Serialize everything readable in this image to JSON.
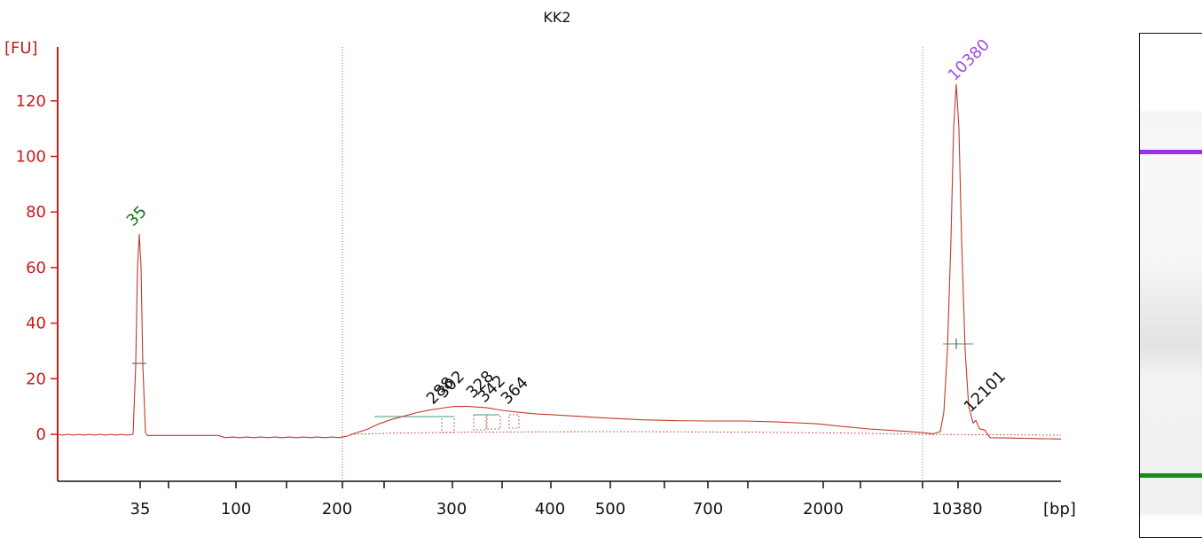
{
  "chart_data": {
    "type": "line",
    "title": "KK2",
    "ylabel": "[FU]",
    "xlabel": "[bp]",
    "ylim": [
      -17,
      137
    ],
    "y_ticks": [
      0,
      20,
      40,
      60,
      80,
      100,
      120
    ],
    "y_tick_labels": [
      "0",
      "20",
      "40",
      "60",
      "80",
      "100",
      "120"
    ],
    "x_tick_labels": [
      "35",
      "100",
      "200",
      "300",
      "400",
      "500",
      "700",
      "2000",
      "10380"
    ],
    "peak_labels": [
      {
        "text": "35",
        "size_bp": 35,
        "fu": 72,
        "color": "#117711"
      },
      {
        "text": "288",
        "size_bp": 288,
        "fu": 10,
        "color": "#111111"
      },
      {
        "text": "302",
        "size_bp": 302,
        "fu": 10,
        "color": "#111111"
      },
      {
        "text": "328",
        "size_bp": 328,
        "fu": 10,
        "color": "#111111"
      },
      {
        "text": "342",
        "size_bp": 342,
        "fu": 9,
        "color": "#111111"
      },
      {
        "text": "364",
        "size_bp": 364,
        "fu": 8,
        "color": "#111111"
      },
      {
        "text": "10380",
        "size_bp": 10380,
        "fu": 126,
        "color": "#a24be6"
      },
      {
        "text": "12101",
        "size_bp": 12101,
        "fu": 5,
        "color": "#111111"
      }
    ],
    "series": [
      {
        "color": "#c0392b",
        "points": [
          [
            "below 35",
            -0.3
          ],
          [
            "35",
            72
          ],
          [
            "100",
            -0.7
          ],
          [
            "200",
            -1.3
          ],
          [
            "250",
            4.3
          ],
          [
            "288",
            9.3
          ],
          [
            "302",
            10
          ],
          [
            "328",
            9.7
          ],
          [
            "364",
            8
          ],
          [
            "400",
            7
          ],
          [
            "500",
            5.8
          ],
          [
            "700",
            4.9
          ],
          [
            "1000",
            4.8
          ],
          [
            "2000",
            1.6
          ],
          [
            "10380",
            126
          ],
          [
            "12101",
            2.7
          ],
          [
            "above 12101",
            -1.7
          ]
        ]
      }
    ],
    "grid": false,
    "legend": "none"
  },
  "gel_lanes": {
    "upper_marker_color": "#9b30e6",
    "lower_marker_color": "#1a8a1a"
  },
  "colors": {
    "axis": "#cc1a1a",
    "trace": "#c0392b",
    "dotted_marker_line": "#9b6b6b",
    "upper_marker_line": "#8a8ae6",
    "region_line": "#3c9a80"
  }
}
